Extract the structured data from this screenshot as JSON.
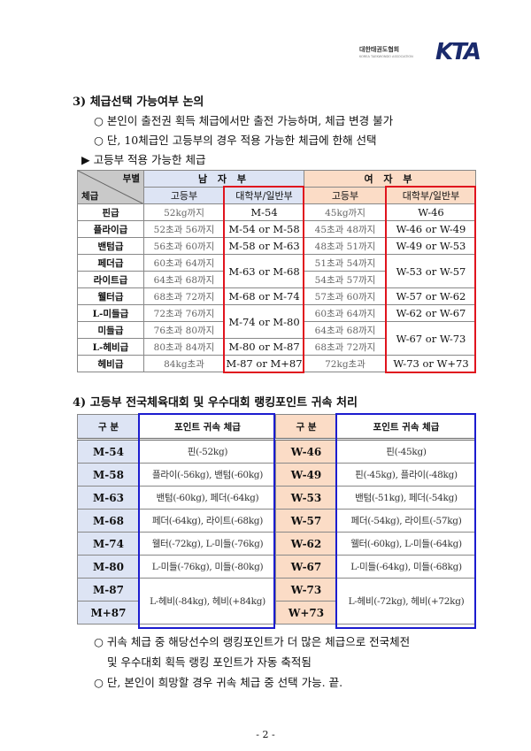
{
  "logo": {
    "org_name": "대한태권도협회",
    "org_sub": "KOREA TAEKWONDO ASSOCIATION",
    "mark": "KTA"
  },
  "section3": {
    "title": "3) 체급선택 가능여부 논의",
    "bullets": [
      "○ 본인이 출전권 획득 체급에서만 출전 가능하며, 체급 변경 불가",
      "○ 단, 10체급인 고등부의 경우 적용 가능한 체급에 한해 선택"
    ],
    "subtitle": "▶ 고등부 적용 가능한 체급"
  },
  "table1": {
    "corner_top": "부별",
    "corner_bottom": "체급",
    "men": "남 자 부",
    "women": "여 자 부",
    "col_hs": "고등부",
    "col_univ": "대학부/일반부",
    "rows": [
      {
        "cls": "핀급",
        "m_hs": "52kg까지",
        "m_un": "M-54",
        "w_hs": "45kg까지",
        "w_un": "W-46"
      },
      {
        "cls": "플라이급",
        "m_hs": "52초과 56까지",
        "m_un": "M-54 or M-58",
        "w_hs": "45초과 48까지",
        "w_un": "W-46 or W-49"
      },
      {
        "cls": "밴텀급",
        "m_hs": "56초과 60까지",
        "m_un": "M-58 or M-63",
        "w_hs": "48초과 51까지",
        "w_un": "W-49 or W-53"
      },
      {
        "cls": "페더급",
        "m_hs": "60초과 64까지",
        "m_un": "M-63 or M-68",
        "w_hs": "51초과 54까지",
        "w_un": "W-53 or W-57"
      },
      {
        "cls": "라이트급",
        "m_hs": "64초과 68까지",
        "m_un": null,
        "w_hs": "54초과 57까지",
        "w_un": null
      },
      {
        "cls": "웰터급",
        "m_hs": "68초과 72까지",
        "m_un": "M-68 or M-74",
        "w_hs": "57초과 60까지",
        "w_un": "W-57 or W-62"
      },
      {
        "cls": "L-미들급",
        "m_hs": "72초과 76까지",
        "m_un": "M-74 or M-80",
        "w_hs": "60초과 64까지",
        "w_un": "W-62 or W-67"
      },
      {
        "cls": "미들급",
        "m_hs": "76초과 80까지",
        "m_un": null,
        "w_hs": "64초과 68까지",
        "w_un": "W-67 or W-73"
      },
      {
        "cls": "L-헤비급",
        "m_hs": "80초과 84까지",
        "m_un": "M-80 or M-87",
        "w_hs": "68초과 72까지",
        "w_un": null
      },
      {
        "cls": "헤비급",
        "m_hs": "84kg초과",
        "m_un": "M-87 or M+87",
        "w_hs": "72kg초과",
        "w_un": "W-73 or W+73"
      }
    ]
  },
  "section4": {
    "title": "4) 고등부 전국체육대회 및 우수대회 랭킹포인트 귀속 처리"
  },
  "table2": {
    "col_div": "구 분",
    "col_pts": "포인트 귀속 체급",
    "rows": [
      {
        "m": "M-54",
        "m_pts": "핀(-52kg)",
        "w": "W-46",
        "w_pts": "핀(-45kg)"
      },
      {
        "m": "M-58",
        "m_pts": "플라이(-56kg), 밴텀(-60kg)",
        "w": "W-49",
        "w_pts": "핀(-45kg), 플라이(-48kg)"
      },
      {
        "m": "M-63",
        "m_pts": "밴텀(-60kg), 페더(-64kg)",
        "w": "W-53",
        "w_pts": "밴텀(-51kg), 페더(-54kg)"
      },
      {
        "m": "M-68",
        "m_pts": "페더(-64kg), 라이트(-68kg)",
        "w": "W-57",
        "w_pts": "페더(-54kg), 라이트(-57kg)"
      },
      {
        "m": "M-74",
        "m_pts": "웰터(-72kg), L-미들(-76kg)",
        "w": "W-62",
        "w_pts": "웰터(-60kg), L-미들(-64kg)"
      },
      {
        "m": "M-80",
        "m_pts": "L-미들(-76kg), 미들(-80kg)",
        "w": "W-67",
        "w_pts": "L-미들(-64kg), 미들(-68kg)"
      },
      {
        "m": "M-87",
        "m_pts": "L-헤비(-84kg), 헤비(+84kg)",
        "w": "W-73",
        "w_pts": "L-헤비(-72kg), 헤비(+72kg)"
      },
      {
        "m": "M+87",
        "m_pts": null,
        "w": "W+73",
        "w_pts": null
      }
    ]
  },
  "notes": [
    "○ 귀속 체급 중 해당선수의 랭킹포인트가 더 많은 체급으로 전국체전",
    "및 우수대회 획득 랭킹 포인트가 자동 축적됨",
    "○ 단, 본인이 희망할 경우 귀속 체급 중 선택 가능.  끝."
  ],
  "page_number": "- 2 -",
  "colors": {
    "men_header": "#dde4f4",
    "women_header": "#fbdcc6",
    "highlight_red": "#e0141e",
    "highlight_blue": "#1c1ccf"
  }
}
